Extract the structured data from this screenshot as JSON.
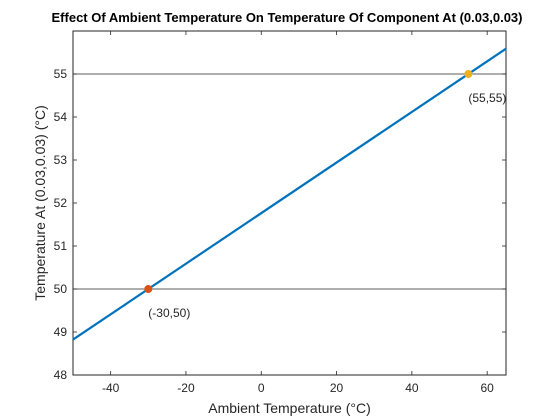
{
  "chart_data": {
    "type": "line",
    "title": "Effect Of Ambient Temperature On Temperature Of Component At (0.03,0.03)",
    "xlabel": "Ambient Temperature (°C)",
    "ylabel": "Temperature At (0.03,0.03) (°C)",
    "xlim": [
      -50,
      65
    ],
    "ylim": [
      48,
      56
    ],
    "xticks": [
      -40,
      -20,
      0,
      20,
      40,
      60
    ],
    "yticks": [
      48,
      49,
      50,
      51,
      52,
      53,
      54,
      55
    ],
    "grid": false,
    "series": [
      {
        "x": [
          -50,
          65
        ],
        "y": [
          48.8235,
          55.5882
        ],
        "color": "#0072BD"
      }
    ],
    "reference_lines": [
      {
        "orientation": "horizontal",
        "y": 55,
        "color": "#262626"
      },
      {
        "orientation": "horizontal",
        "y": 50,
        "color": "#262626"
      }
    ],
    "markers": [
      {
        "x": 55,
        "y": 55,
        "color": "#EDB120",
        "label": "(55,55)"
      },
      {
        "x": -30,
        "y": 50,
        "color": "#D95319",
        "label": "(-30,50)"
      }
    ]
  }
}
